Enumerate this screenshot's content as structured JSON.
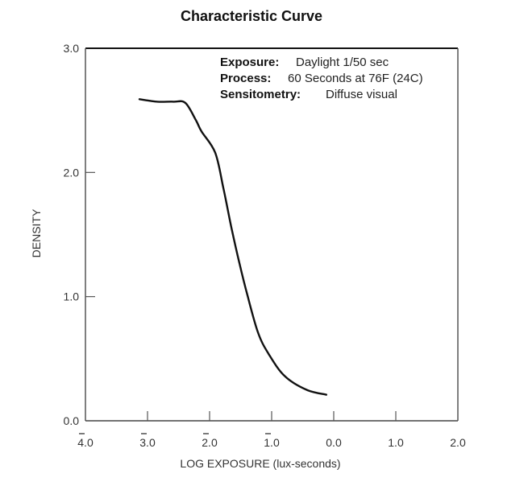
{
  "chart_data": {
    "type": "line",
    "title": "Characteristic Curve",
    "xlabel": "LOG EXPOSURE (lux-seconds)",
    "ylabel": "DENSITY",
    "xlim": [
      -4.0,
      2.0
    ],
    "ylim": [
      0.0,
      3.0
    ],
    "grid": false,
    "x_ticks": [
      {
        "value": -4.0,
        "label": "4.0",
        "bar": true
      },
      {
        "value": -3.0,
        "label": "3.0",
        "bar": true
      },
      {
        "value": -2.0,
        "label": "2.0",
        "bar": true
      },
      {
        "value": -1.0,
        "label": "1.0",
        "bar": true
      },
      {
        "value": 0.0,
        "label": "0.0",
        "bar": false
      },
      {
        "value": 1.0,
        "label": "1.0",
        "bar": false
      },
      {
        "value": 2.0,
        "label": "2.0",
        "bar": false
      }
    ],
    "y_ticks": [
      {
        "value": 0.0,
        "label": "0.0"
      },
      {
        "value": 1.0,
        "label": "1.0"
      },
      {
        "value": 2.0,
        "label": "2.0"
      },
      {
        "value": 3.0,
        "label": "3.0"
      }
    ],
    "annotations": [
      {
        "key": "Exposure:",
        "value": "Daylight 1/50 sec"
      },
      {
        "key": "Process:",
        "value": "60 Seconds at 76F (24C)"
      },
      {
        "key": "Sensitometry:",
        "value": "Diffuse visual"
      }
    ],
    "series": [
      {
        "name": "Characteristic Curve",
        "color": "#111111",
        "x": [
          -3.13,
          -2.84,
          -2.58,
          -2.39,
          -2.22,
          -2.13,
          -1.91,
          -1.78,
          -1.65,
          -1.52,
          -1.39,
          -1.22,
          -1.05,
          -0.79,
          -0.44,
          -0.12
        ],
        "y": [
          2.59,
          2.57,
          2.57,
          2.56,
          2.42,
          2.33,
          2.16,
          1.88,
          1.56,
          1.27,
          1.01,
          0.71,
          0.54,
          0.36,
          0.25,
          0.21
        ]
      }
    ]
  }
}
